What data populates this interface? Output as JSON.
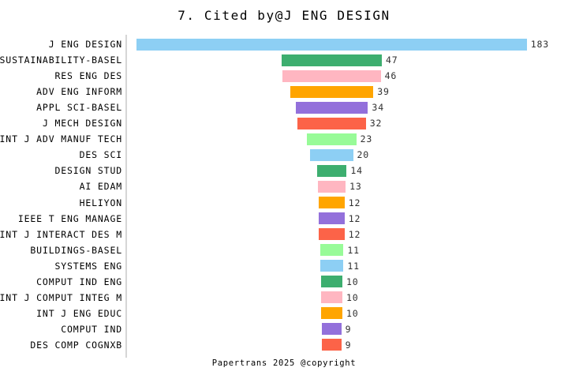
{
  "title": "7. Cited by@J ENG DESIGN",
  "footer": "Papertrans 2025 @copyright",
  "colors": {
    "background": "#ffffff",
    "axis_line": "#d6d6d6",
    "label_text": "#000000",
    "value_text": "#303030",
    "title_text": "#000000"
  },
  "chart_data": {
    "type": "bar",
    "variant": "horizontal-centered-funnel",
    "title": "7. Cited by@J ENG DESIGN",
    "xlabel": "",
    "ylabel": "",
    "grid": false,
    "legend": false,
    "value_labels": "right-of-bar",
    "xlim": [
      0,
      183
    ],
    "categories": [
      "J ENG DESIGN",
      "SUSTAINABILITY-BASEL",
      "RES ENG DES",
      "ADV ENG INFORM",
      "APPL SCI-BASEL",
      "J MECH DESIGN",
      "INT J ADV MANUF TECH",
      "DES SCI",
      "DESIGN STUD",
      "AI EDAM",
      "HELIYON",
      "IEEE T ENG MANAGE",
      "INT J INTERACT DES M",
      "BUILDINGS-BASEL",
      "SYSTEMS ENG",
      "COMPUT IND ENG",
      "INT J COMPUT INTEG M",
      "INT J ENG EDUC",
      "COMPUT IND",
      "DES COMP COGNXB"
    ],
    "values": [
      183,
      47,
      46,
      39,
      34,
      32,
      23,
      20,
      14,
      13,
      12,
      12,
      12,
      11,
      11,
      10,
      10,
      10,
      9,
      9
    ],
    "palette_cycle": [
      "#8DCFF4",
      "#3DAE6F",
      "#FFB6C1",
      "#FFA500",
      "#9370DB",
      "#FC6348",
      "#98FB98"
    ],
    "bar_colors": [
      "#8DCFF4",
      "#3DAE6F",
      "#FFB6C1",
      "#FFA500",
      "#9370DB",
      "#FC6348",
      "#98FB98",
      "#8DCFF4",
      "#3DAE6F",
      "#FFB6C1",
      "#FFA500",
      "#9370DB",
      "#FC6348",
      "#98FB98",
      "#8DCFF4",
      "#3DAE6F",
      "#FFB6C1",
      "#FFA500",
      "#9370DB",
      "#FC6348"
    ]
  }
}
